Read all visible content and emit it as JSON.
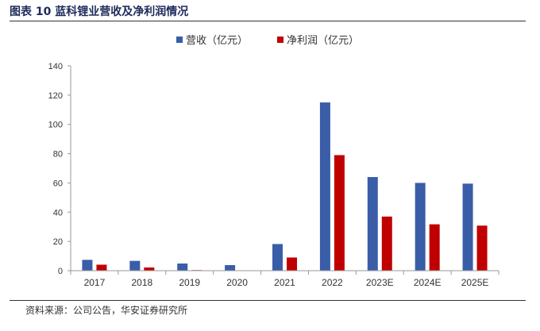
{
  "header": {
    "figure_label": "图表 10",
    "title": "蓝科锂业营收及净利润情况"
  },
  "source": "资料来源：公司公告，华安证券研究所",
  "colors": {
    "revenue": "#3a5da8",
    "net_profit": "#c00000",
    "axis": "#999999",
    "text": "#333333"
  },
  "chart_data": {
    "type": "bar",
    "categories": [
      "2017",
      "2018",
      "2019",
      "2020",
      "2021",
      "2022",
      "2023E",
      "2024E",
      "2025E"
    ],
    "series": [
      {
        "name": "营收（亿元）",
        "values": [
          7.4,
          6.7,
          4.9,
          3.8,
          18.2,
          115.0,
          64.0,
          60.0,
          59.5
        ]
      },
      {
        "name": "净利润（亿元）",
        "values": [
          4.1,
          2.2,
          0.4,
          0.2,
          9.0,
          79.0,
          37.0,
          31.7,
          30.8
        ]
      }
    ],
    "ylim": [
      0,
      140
    ],
    "yticks": [
      0,
      20,
      40,
      60,
      80,
      100,
      120,
      140
    ],
    "legend_position": "top-center",
    "grid": false
  }
}
